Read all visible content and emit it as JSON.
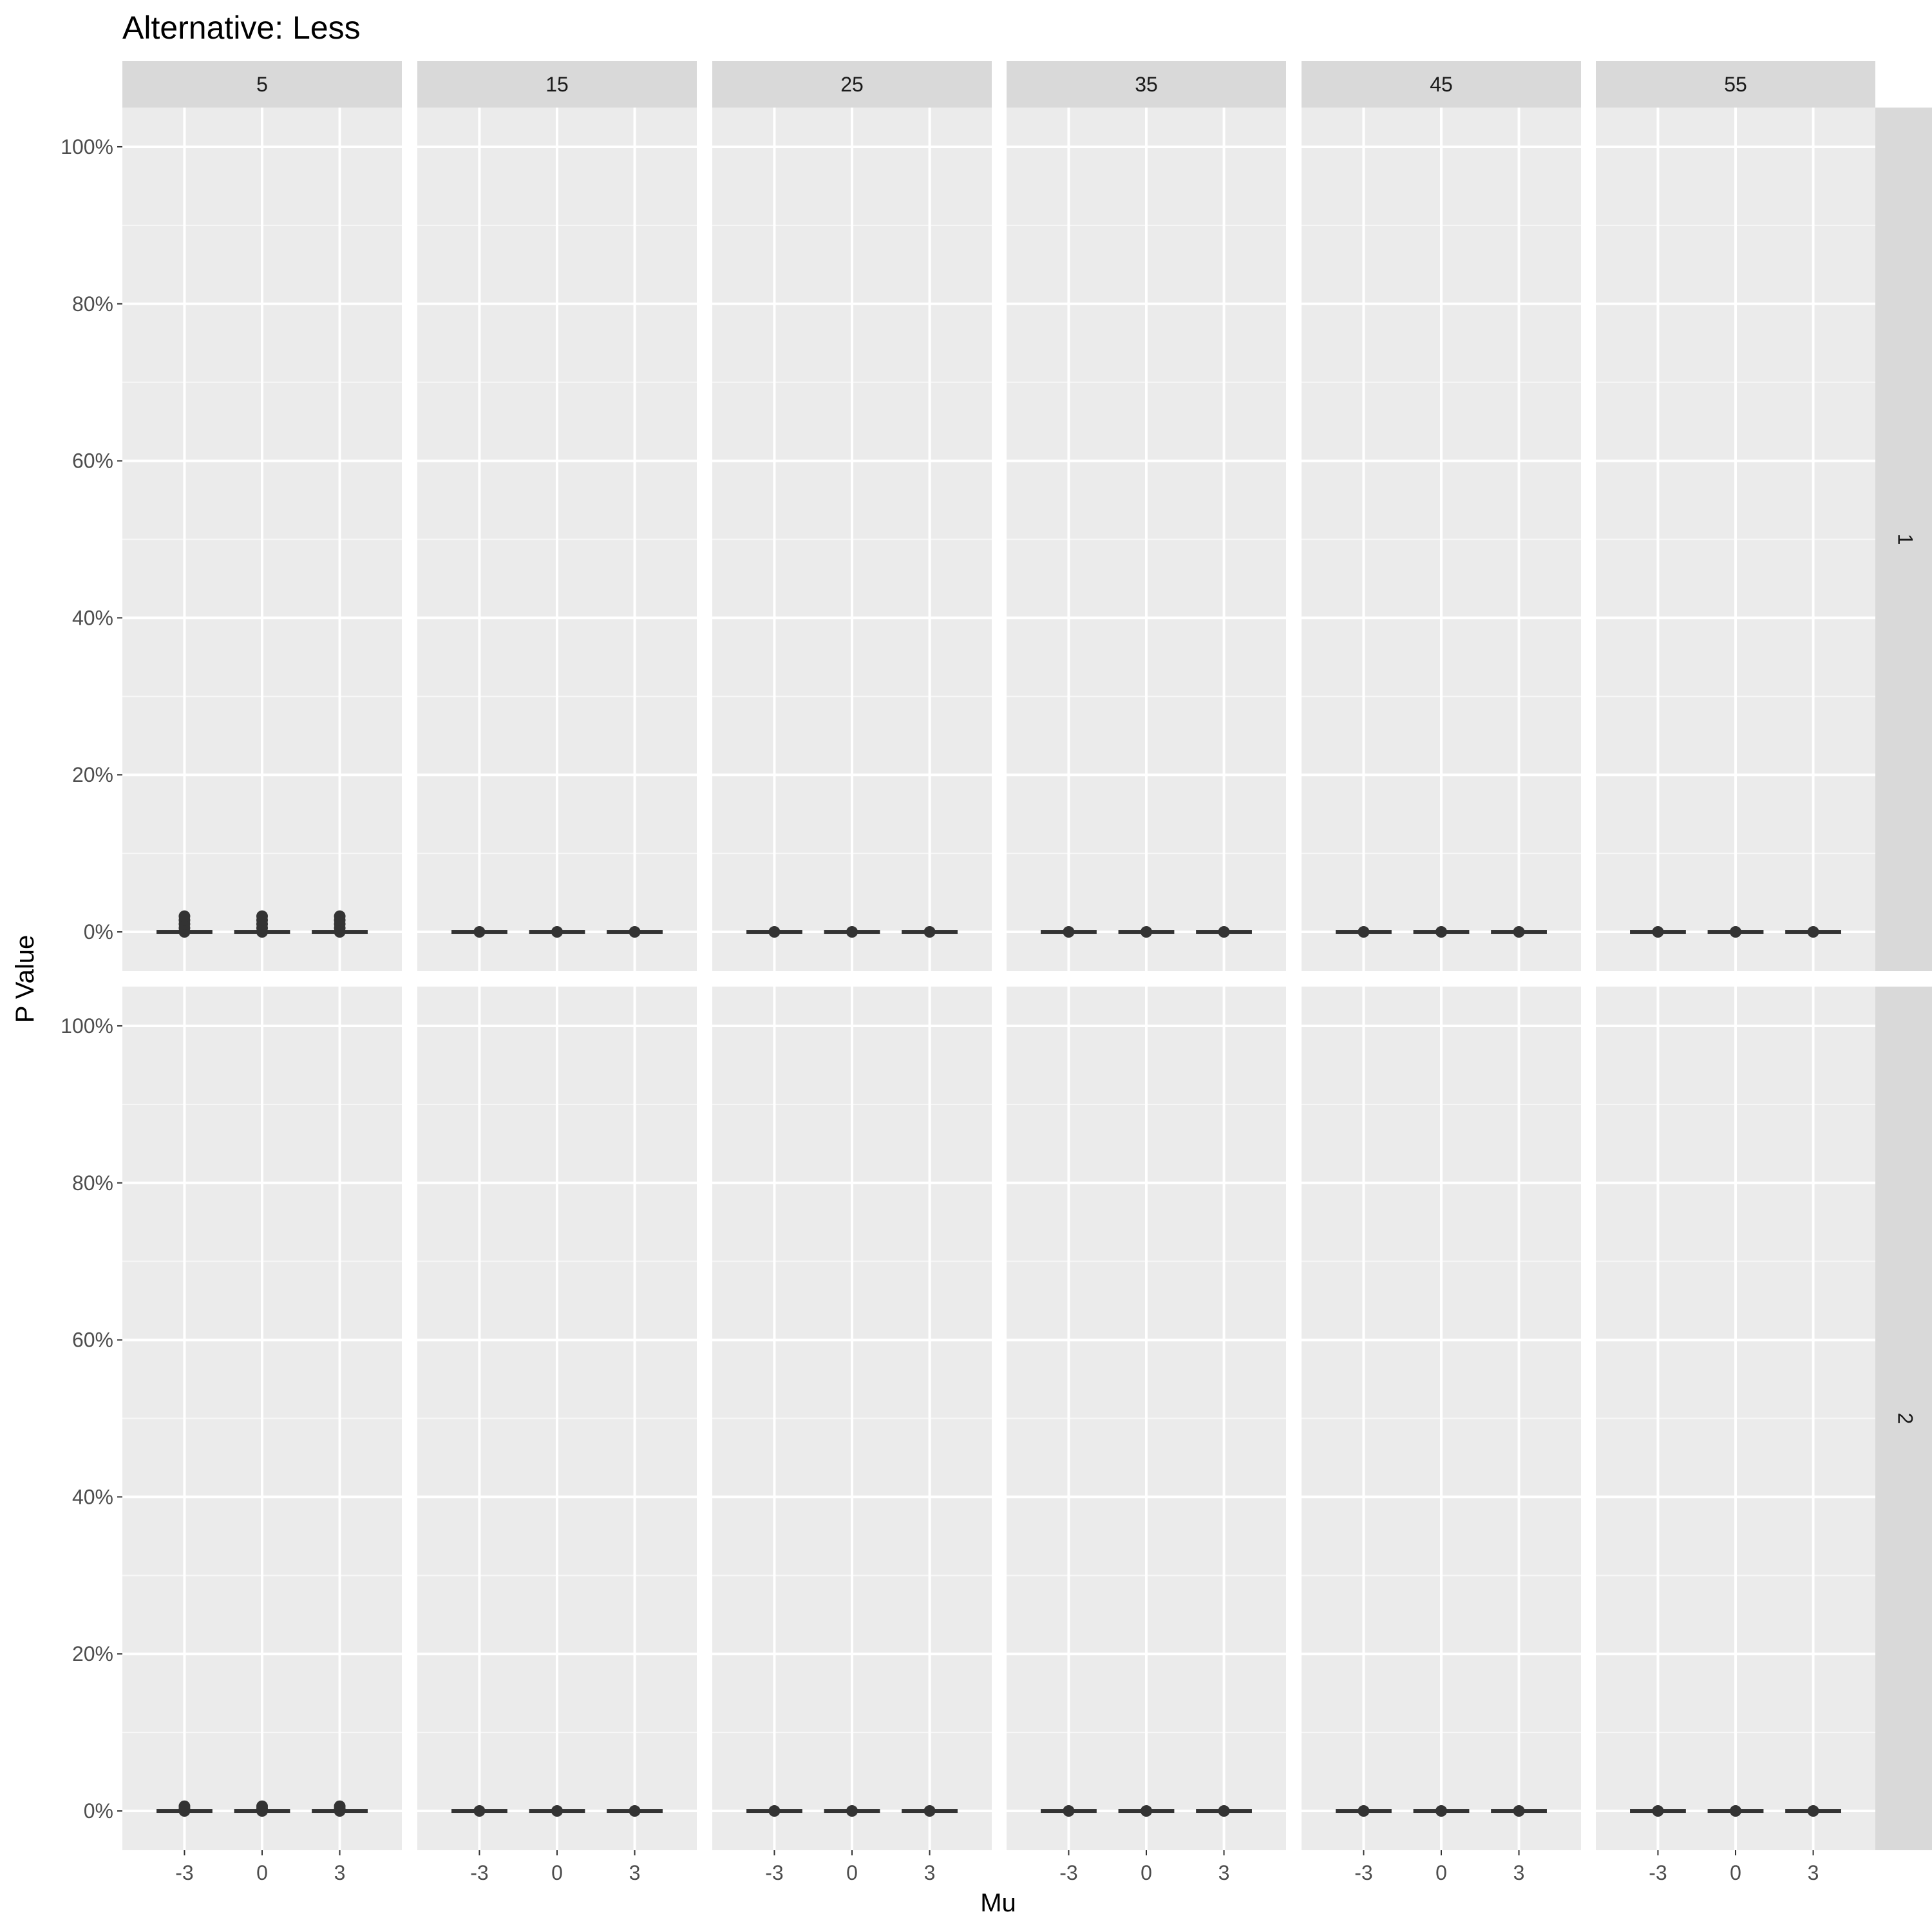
{
  "chart_data": {
    "type": "box",
    "title": "Alternative: Less",
    "xlabel": "Mu",
    "ylabel": "P Value",
    "ylim": [
      -0.05,
      1.05
    ],
    "y_ticks": [
      0,
      0.2,
      0.4,
      0.6,
      0.8,
      1.0
    ],
    "y_tick_labels": [
      "0%",
      "20%",
      "40%",
      "60%",
      "80%",
      "100%"
    ],
    "categories": [
      "-3",
      "0",
      "3"
    ],
    "column_facets": [
      "5",
      "15",
      "25",
      "35",
      "45",
      "55"
    ],
    "row_facets": [
      "1",
      "2"
    ],
    "grid": true,
    "panels": [
      {
        "row": "1",
        "col": "5",
        "boxes": [
          {
            "x": "-3",
            "median": 0,
            "outliers": [
              0.005,
              0.01,
              0.015,
              0.02
            ]
          },
          {
            "x": "0",
            "median": 0,
            "outliers": [
              0.005,
              0.01,
              0.015,
              0.02
            ]
          },
          {
            "x": "3",
            "median": 0,
            "outliers": [
              0.005,
              0.01,
              0.015,
              0.02
            ]
          }
        ]
      },
      {
        "row": "1",
        "col": "15",
        "boxes": [
          {
            "x": "-3",
            "median": 0,
            "outliers": []
          },
          {
            "x": "0",
            "median": 0,
            "outliers": []
          },
          {
            "x": "3",
            "median": 0,
            "outliers": []
          }
        ]
      },
      {
        "row": "1",
        "col": "25",
        "boxes": [
          {
            "x": "-3",
            "median": 0,
            "outliers": []
          },
          {
            "x": "0",
            "median": 0,
            "outliers": []
          },
          {
            "x": "3",
            "median": 0,
            "outliers": []
          }
        ]
      },
      {
        "row": "1",
        "col": "35",
        "boxes": [
          {
            "x": "-3",
            "median": 0,
            "outliers": []
          },
          {
            "x": "0",
            "median": 0,
            "outliers": []
          },
          {
            "x": "3",
            "median": 0,
            "outliers": []
          }
        ]
      },
      {
        "row": "1",
        "col": "45",
        "boxes": [
          {
            "x": "-3",
            "median": 0,
            "outliers": []
          },
          {
            "x": "0",
            "median": 0,
            "outliers": []
          },
          {
            "x": "3",
            "median": 0,
            "outliers": []
          }
        ]
      },
      {
        "row": "1",
        "col": "55",
        "boxes": [
          {
            "x": "-3",
            "median": 0,
            "outliers": []
          },
          {
            "x": "0",
            "median": 0,
            "outliers": []
          },
          {
            "x": "3",
            "median": 0,
            "outliers": []
          }
        ]
      },
      {
        "row": "2",
        "col": "5",
        "boxes": [
          {
            "x": "-3",
            "median": 0,
            "outliers": [
              0.003,
              0.006
            ]
          },
          {
            "x": "0",
            "median": 0,
            "outliers": [
              0.003,
              0.006
            ]
          },
          {
            "x": "3",
            "median": 0,
            "outliers": [
              0.003,
              0.006
            ]
          }
        ]
      },
      {
        "row": "2",
        "col": "15",
        "boxes": [
          {
            "x": "-3",
            "median": 0,
            "outliers": []
          },
          {
            "x": "0",
            "median": 0,
            "outliers": []
          },
          {
            "x": "3",
            "median": 0,
            "outliers": []
          }
        ]
      },
      {
        "row": "2",
        "col": "25",
        "boxes": [
          {
            "x": "-3",
            "median": 0,
            "outliers": []
          },
          {
            "x": "0",
            "median": 0,
            "outliers": []
          },
          {
            "x": "3",
            "median": 0,
            "outliers": []
          }
        ]
      },
      {
        "row": "2",
        "col": "35",
        "boxes": [
          {
            "x": "-3",
            "median": 0,
            "outliers": []
          },
          {
            "x": "0",
            "median": 0,
            "outliers": []
          },
          {
            "x": "3",
            "median": 0,
            "outliers": []
          }
        ]
      },
      {
        "row": "2",
        "col": "45",
        "boxes": [
          {
            "x": "-3",
            "median": 0,
            "outliers": []
          },
          {
            "x": "0",
            "median": 0,
            "outliers": []
          },
          {
            "x": "3",
            "median": 0,
            "outliers": []
          }
        ]
      },
      {
        "row": "2",
        "col": "55",
        "boxes": [
          {
            "x": "-3",
            "median": 0,
            "outliers": []
          },
          {
            "x": "0",
            "median": 0,
            "outliers": []
          },
          {
            "x": "3",
            "median": 0,
            "outliers": []
          }
        ]
      }
    ]
  },
  "colors": {
    "panel_background": "#ebebeb",
    "grid_major": "#ffffff",
    "grid_minor": "#f7f7f7",
    "strip_background": "#d9d9d9",
    "box": "#333333"
  }
}
